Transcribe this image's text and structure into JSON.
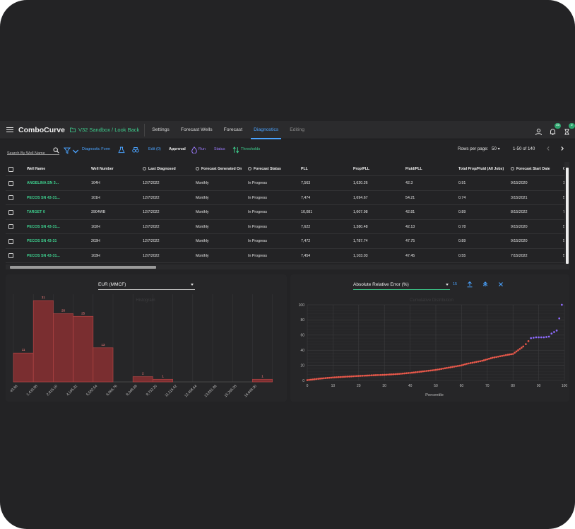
{
  "header": {
    "brand": "ComboCurve",
    "project": "V32 Sandbox / Look Back",
    "nav": [
      {
        "label": "Settings"
      },
      {
        "label": "Forecast Wells"
      },
      {
        "label": "Forecast"
      },
      {
        "label": "Diagnostics",
        "active": true
      },
      {
        "label": "Editing"
      }
    ],
    "notification_count": "10",
    "task_count": "2",
    "accent_color": "#4aa3ff",
    "brand_green": "#3ecf8e"
  },
  "toolbar": {
    "search_placeholder": "Search By Well Name",
    "diagnostic_form": "Diagnostic Form",
    "edit": "Edit (0)",
    "approval": "Approval",
    "run": "Run",
    "status": "Status",
    "thresholds": "Thresholds",
    "rows_per_page_label": "Rows per page:",
    "rows_per_page": "50",
    "range": "1-50 of 140"
  },
  "table": {
    "columns": [
      "Well Name",
      "Well Number",
      "Last Diagnosed",
      "Forecast Generated On",
      "Forecast Status",
      "PLL",
      "Prop/PLL",
      "Fluid/PLL",
      "Total Prop/Fluid (All Jobs)",
      "Forecast Start Date",
      "C"
    ],
    "rows": [
      [
        "ANGELINA SN 3...",
        "104H",
        "12/7/2022",
        "Monthly",
        "In Progress",
        "7,563",
        "1,620.26",
        "42.3",
        "0.91",
        "9/15/2020",
        "1"
      ],
      [
        "PECOS SN 43-31...",
        "101H",
        "12/7/2022",
        "Monthly",
        "In Progress",
        "7,474",
        "1,694.67",
        "54.21",
        "0.74",
        "3/15/2021",
        "5"
      ],
      [
        "TARGET 0",
        "3904WB",
        "12/7/2022",
        "Monthly",
        "In Progress",
        "10,081",
        "1,607.98",
        "42.81",
        "0.89",
        "8/15/2022",
        "7"
      ],
      [
        "PECOS SN 43-31...",
        "102H",
        "12/7/2022",
        "Monthly",
        "In Progress",
        "7,622",
        "1,380.48",
        "42.13",
        "0.78",
        "9/15/2020",
        "5"
      ],
      [
        "PECOS SN 43-31",
        "203H",
        "12/7/2022",
        "Monthly",
        "In Progress",
        "7,472",
        "1,787.74",
        "47.75",
        "0.89",
        "9/15/2020",
        "5"
      ],
      [
        "PECOS SN 43-31...",
        "103H",
        "12/7/2022",
        "Monthly",
        "In Progress",
        "7,454",
        "1,103.03",
        "47.45",
        "0.55",
        "7/15/2022",
        "5"
      ]
    ]
  },
  "histogram_panel": {
    "select_value": "EUR (MMCF)"
  },
  "cumulative_panel": {
    "select_value": "Absolute Relative Error (%)",
    "count": "15"
  },
  "chart_data": [
    {
      "type": "bar",
      "title": "Histogram",
      "categories": [
        "43.66",
        "1,433.88",
        "2,815.10",
        "4,195.32",
        "5,582.54",
        "6,965.76",
        "8,348.98",
        "9,732.20",
        "11,115.42",
        "12,498.64",
        "13,881.86",
        "15,265.08",
        "16,648.30"
      ],
      "values": [
        11,
        31,
        26,
        25,
        13,
        null,
        2,
        1,
        null,
        null,
        null,
        null,
        1
      ],
      "ylim": [
        0,
        31
      ],
      "bar_color": "#7a2e30",
      "grid": true
    },
    {
      "type": "scatter",
      "title": "Cumulative Distribution",
      "xlabel": "Percentile",
      "xlim": [
        0,
        100
      ],
      "ylim": [
        0,
        100
      ],
      "xticks": [
        0,
        10,
        20,
        30,
        40,
        50,
        60,
        70,
        80,
        90,
        100
      ],
      "yticks": [
        0,
        20,
        40,
        60,
        80,
        100
      ],
      "grid": true,
      "series": [
        {
          "color": "#e8584a",
          "x": [
            0,
            5,
            10,
            15,
            20,
            25,
            30,
            35,
            40,
            45,
            50,
            55,
            60,
            62,
            65,
            68,
            70,
            72,
            75,
            78,
            80,
            82,
            84,
            85,
            86
          ],
          "y": [
            0.5,
            2.5,
            4,
            5,
            6,
            6.8,
            7.5,
            8.5,
            10,
            12,
            14,
            17,
            20,
            22,
            24,
            26,
            28,
            30,
            32,
            34,
            35,
            40,
            45,
            48,
            52
          ]
        },
        {
          "color": "#8f6bff",
          "x": [
            87,
            88,
            89,
            90,
            91,
            92,
            93,
            94,
            95,
            96,
            97,
            98,
            99
          ],
          "y": [
            56,
            56.5,
            57,
            57,
            57,
            57,
            57.5,
            58,
            62,
            64,
            66,
            82,
            100
          ]
        }
      ]
    }
  ]
}
